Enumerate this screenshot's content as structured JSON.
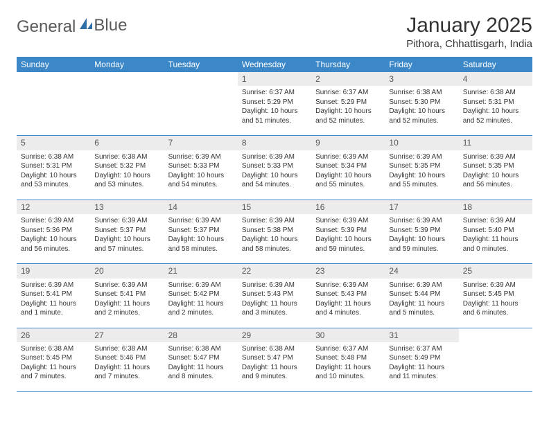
{
  "logo": {
    "text1": "General",
    "text2": "Blue"
  },
  "title": "January 2025",
  "location": "Pithora, Chhattisgarh, India",
  "colors": {
    "header_bg": "#3b87c8",
    "header_text": "#ffffff",
    "daynum_bg": "#ececec",
    "daynum_text": "#555555",
    "detail_text": "#333333",
    "line": "#3b87c8",
    "logo_text": "#5a5a5a",
    "logo_accent": "#2f6fa8"
  },
  "weekdays": [
    "Sunday",
    "Monday",
    "Tuesday",
    "Wednesday",
    "Thursday",
    "Friday",
    "Saturday"
  ],
  "weeks": [
    {
      "days": [
        {
          "num": "",
          "sunrise": "",
          "sunset": "",
          "daylight": ""
        },
        {
          "num": "",
          "sunrise": "",
          "sunset": "",
          "daylight": ""
        },
        {
          "num": "",
          "sunrise": "",
          "sunset": "",
          "daylight": ""
        },
        {
          "num": "1",
          "sunrise": "Sunrise: 6:37 AM",
          "sunset": "Sunset: 5:29 PM",
          "daylight": "Daylight: 10 hours and 51 minutes."
        },
        {
          "num": "2",
          "sunrise": "Sunrise: 6:37 AM",
          "sunset": "Sunset: 5:29 PM",
          "daylight": "Daylight: 10 hours and 52 minutes."
        },
        {
          "num": "3",
          "sunrise": "Sunrise: 6:38 AM",
          "sunset": "Sunset: 5:30 PM",
          "daylight": "Daylight: 10 hours and 52 minutes."
        },
        {
          "num": "4",
          "sunrise": "Sunrise: 6:38 AM",
          "sunset": "Sunset: 5:31 PM",
          "daylight": "Daylight: 10 hours and 52 minutes."
        }
      ]
    },
    {
      "days": [
        {
          "num": "5",
          "sunrise": "Sunrise: 6:38 AM",
          "sunset": "Sunset: 5:31 PM",
          "daylight": "Daylight: 10 hours and 53 minutes."
        },
        {
          "num": "6",
          "sunrise": "Sunrise: 6:38 AM",
          "sunset": "Sunset: 5:32 PM",
          "daylight": "Daylight: 10 hours and 53 minutes."
        },
        {
          "num": "7",
          "sunrise": "Sunrise: 6:39 AM",
          "sunset": "Sunset: 5:33 PM",
          "daylight": "Daylight: 10 hours and 54 minutes."
        },
        {
          "num": "8",
          "sunrise": "Sunrise: 6:39 AM",
          "sunset": "Sunset: 5:33 PM",
          "daylight": "Daylight: 10 hours and 54 minutes."
        },
        {
          "num": "9",
          "sunrise": "Sunrise: 6:39 AM",
          "sunset": "Sunset: 5:34 PM",
          "daylight": "Daylight: 10 hours and 55 minutes."
        },
        {
          "num": "10",
          "sunrise": "Sunrise: 6:39 AM",
          "sunset": "Sunset: 5:35 PM",
          "daylight": "Daylight: 10 hours and 55 minutes."
        },
        {
          "num": "11",
          "sunrise": "Sunrise: 6:39 AM",
          "sunset": "Sunset: 5:35 PM",
          "daylight": "Daylight: 10 hours and 56 minutes."
        }
      ]
    },
    {
      "days": [
        {
          "num": "12",
          "sunrise": "Sunrise: 6:39 AM",
          "sunset": "Sunset: 5:36 PM",
          "daylight": "Daylight: 10 hours and 56 minutes."
        },
        {
          "num": "13",
          "sunrise": "Sunrise: 6:39 AM",
          "sunset": "Sunset: 5:37 PM",
          "daylight": "Daylight: 10 hours and 57 minutes."
        },
        {
          "num": "14",
          "sunrise": "Sunrise: 6:39 AM",
          "sunset": "Sunset: 5:37 PM",
          "daylight": "Daylight: 10 hours and 58 minutes."
        },
        {
          "num": "15",
          "sunrise": "Sunrise: 6:39 AM",
          "sunset": "Sunset: 5:38 PM",
          "daylight": "Daylight: 10 hours and 58 minutes."
        },
        {
          "num": "16",
          "sunrise": "Sunrise: 6:39 AM",
          "sunset": "Sunset: 5:39 PM",
          "daylight": "Daylight: 10 hours and 59 minutes."
        },
        {
          "num": "17",
          "sunrise": "Sunrise: 6:39 AM",
          "sunset": "Sunset: 5:39 PM",
          "daylight": "Daylight: 10 hours and 59 minutes."
        },
        {
          "num": "18",
          "sunrise": "Sunrise: 6:39 AM",
          "sunset": "Sunset: 5:40 PM",
          "daylight": "Daylight: 11 hours and 0 minutes."
        }
      ]
    },
    {
      "days": [
        {
          "num": "19",
          "sunrise": "Sunrise: 6:39 AM",
          "sunset": "Sunset: 5:41 PM",
          "daylight": "Daylight: 11 hours and 1 minute."
        },
        {
          "num": "20",
          "sunrise": "Sunrise: 6:39 AM",
          "sunset": "Sunset: 5:41 PM",
          "daylight": "Daylight: 11 hours and 2 minutes."
        },
        {
          "num": "21",
          "sunrise": "Sunrise: 6:39 AM",
          "sunset": "Sunset: 5:42 PM",
          "daylight": "Daylight: 11 hours and 2 minutes."
        },
        {
          "num": "22",
          "sunrise": "Sunrise: 6:39 AM",
          "sunset": "Sunset: 5:43 PM",
          "daylight": "Daylight: 11 hours and 3 minutes."
        },
        {
          "num": "23",
          "sunrise": "Sunrise: 6:39 AM",
          "sunset": "Sunset: 5:43 PM",
          "daylight": "Daylight: 11 hours and 4 minutes."
        },
        {
          "num": "24",
          "sunrise": "Sunrise: 6:39 AM",
          "sunset": "Sunset: 5:44 PM",
          "daylight": "Daylight: 11 hours and 5 minutes."
        },
        {
          "num": "25",
          "sunrise": "Sunrise: 6:39 AM",
          "sunset": "Sunset: 5:45 PM",
          "daylight": "Daylight: 11 hours and 6 minutes."
        }
      ]
    },
    {
      "days": [
        {
          "num": "26",
          "sunrise": "Sunrise: 6:38 AM",
          "sunset": "Sunset: 5:45 PM",
          "daylight": "Daylight: 11 hours and 7 minutes."
        },
        {
          "num": "27",
          "sunrise": "Sunrise: 6:38 AM",
          "sunset": "Sunset: 5:46 PM",
          "daylight": "Daylight: 11 hours and 7 minutes."
        },
        {
          "num": "28",
          "sunrise": "Sunrise: 6:38 AM",
          "sunset": "Sunset: 5:47 PM",
          "daylight": "Daylight: 11 hours and 8 minutes."
        },
        {
          "num": "29",
          "sunrise": "Sunrise: 6:38 AM",
          "sunset": "Sunset: 5:47 PM",
          "daylight": "Daylight: 11 hours and 9 minutes."
        },
        {
          "num": "30",
          "sunrise": "Sunrise: 6:37 AM",
          "sunset": "Sunset: 5:48 PM",
          "daylight": "Daylight: 11 hours and 10 minutes."
        },
        {
          "num": "31",
          "sunrise": "Sunrise: 6:37 AM",
          "sunset": "Sunset: 5:49 PM",
          "daylight": "Daylight: 11 hours and 11 minutes."
        },
        {
          "num": "",
          "sunrise": "",
          "sunset": "",
          "daylight": ""
        }
      ]
    }
  ]
}
